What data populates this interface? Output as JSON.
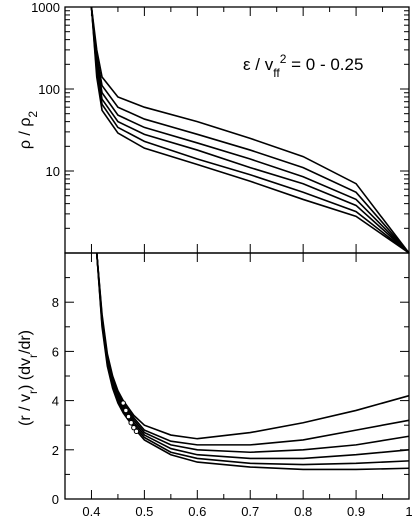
{
  "chart_data": [
    {
      "type": "line",
      "panel": "top",
      "ylabel": "ρ / ρ₂",
      "yscale": "log",
      "ylim": [
        1,
        1000
      ],
      "xlim": [
        0.35,
        1.0
      ],
      "yticks": [
        10,
        100,
        1000
      ],
      "ytick_labels": [
        "10",
        "100",
        "1000"
      ],
      "annotation": "ε / v_ff² = 0 - 0.25",
      "series": [
        {
          "x": [
            0.4,
            0.41,
            0.42,
            0.45,
            0.5,
            0.6,
            0.7,
            0.8,
            0.9,
            1.0
          ],
          "values": [
            1000,
            300,
            140,
            80,
            60,
            40,
            25,
            15,
            7,
            1
          ]
        },
        {
          "x": [
            0.4,
            0.41,
            0.42,
            0.45,
            0.5,
            0.6,
            0.7,
            0.8,
            0.9,
            1.0
          ],
          "values": [
            1000,
            250,
            110,
            60,
            43,
            28,
            18,
            11,
            5.5,
            1
          ]
        },
        {
          "x": [
            0.4,
            0.41,
            0.42,
            0.45,
            0.5,
            0.6,
            0.7,
            0.8,
            0.9,
            1.0
          ],
          "values": [
            1000,
            210,
            90,
            48,
            34,
            22,
            14,
            8.5,
            4.5,
            1
          ]
        },
        {
          "x": [
            0.4,
            0.41,
            0.42,
            0.45,
            0.5,
            0.6,
            0.7,
            0.8,
            0.9,
            1.0
          ],
          "values": [
            1000,
            180,
            75,
            40,
            28,
            18,
            11,
            7,
            3.8,
            1
          ]
        },
        {
          "x": [
            0.4,
            0.41,
            0.42,
            0.45,
            0.5,
            0.6,
            0.7,
            0.8,
            0.9,
            1.0
          ],
          "values": [
            1000,
            160,
            65,
            34,
            23,
            14,
            9,
            5.5,
            3.2,
            1
          ]
        },
        {
          "x": [
            0.4,
            0.41,
            0.42,
            0.45,
            0.5,
            0.6,
            0.7,
            0.8,
            0.9,
            1.0
          ],
          "values": [
            1000,
            140,
            55,
            29,
            19,
            12,
            7.5,
            4.5,
            2.8,
            1
          ]
        }
      ]
    },
    {
      "type": "line",
      "panel": "bottom",
      "ylabel": "(r / v_r) (dv_r/dr)",
      "xlim": [
        0.35,
        1.0
      ],
      "ylim": [
        0,
        10
      ],
      "xticks": [
        0.4,
        0.5,
        0.6,
        0.7,
        0.8,
        0.9,
        1.0
      ],
      "xtick_labels": [
        "0.4",
        "0.5",
        "0.6",
        "0.7",
        "0.8",
        "0.9",
        "1"
      ],
      "yticks": [
        0,
        2,
        4,
        6,
        8
      ],
      "ytick_labels": [
        "0",
        "2",
        "4",
        "6",
        "8"
      ],
      "series": [
        {
          "x": [
            0.41,
            0.42,
            0.43,
            0.44,
            0.45,
            0.46,
            0.48,
            0.5,
            0.55,
            0.6,
            0.7,
            0.8,
            0.9,
            1.0
          ],
          "values": [
            10,
            7.5,
            5.9,
            5.0,
            4.4,
            4.0,
            3.4,
            3.0,
            2.6,
            2.45,
            2.7,
            3.1,
            3.6,
            4.2
          ]
        },
        {
          "x": [
            0.41,
            0.42,
            0.43,
            0.44,
            0.45,
            0.46,
            0.48,
            0.5,
            0.55,
            0.6,
            0.7,
            0.8,
            0.9,
            1.0
          ],
          "values": [
            10,
            7.4,
            5.8,
            4.9,
            4.3,
            3.9,
            3.3,
            2.8,
            2.35,
            2.2,
            2.2,
            2.4,
            2.8,
            3.2
          ]
        },
        {
          "x": [
            0.41,
            0.42,
            0.43,
            0.44,
            0.45,
            0.46,
            0.48,
            0.5,
            0.55,
            0.6,
            0.7,
            0.8,
            0.9,
            1.0
          ],
          "values": [
            10,
            7.3,
            5.7,
            4.8,
            4.2,
            3.8,
            3.2,
            2.7,
            2.2,
            2.0,
            1.9,
            2.0,
            2.2,
            2.55
          ]
        },
        {
          "x": [
            0.41,
            0.42,
            0.43,
            0.44,
            0.45,
            0.46,
            0.48,
            0.5,
            0.55,
            0.6,
            0.7,
            0.8,
            0.9,
            1.0
          ],
          "values": [
            10,
            7.2,
            5.6,
            4.7,
            4.1,
            3.7,
            3.1,
            2.6,
            2.05,
            1.8,
            1.65,
            1.65,
            1.8,
            2.0
          ]
        },
        {
          "x": [
            0.41,
            0.42,
            0.43,
            0.44,
            0.45,
            0.46,
            0.48,
            0.5,
            0.55,
            0.6,
            0.7,
            0.8,
            0.9,
            1.0
          ],
          "values": [
            10,
            7.1,
            5.5,
            4.6,
            4.0,
            3.6,
            3.0,
            2.5,
            1.9,
            1.65,
            1.45,
            1.4,
            1.45,
            1.55
          ]
        },
        {
          "x": [
            0.41,
            0.42,
            0.43,
            0.44,
            0.45,
            0.46,
            0.48,
            0.5,
            0.55,
            0.6,
            0.7,
            0.8,
            0.9,
            1.0
          ],
          "values": [
            10,
            7.0,
            5.4,
            4.5,
            3.9,
            3.5,
            2.9,
            2.4,
            1.8,
            1.5,
            1.3,
            1.2,
            1.2,
            1.25
          ]
        }
      ],
      "markers": {
        "x": [
          0.46,
          0.465,
          0.47,
          0.475,
          0.48,
          0.485
        ],
        "values": [
          3.9,
          3.6,
          3.35,
          3.1,
          2.9,
          2.75
        ]
      }
    }
  ]
}
